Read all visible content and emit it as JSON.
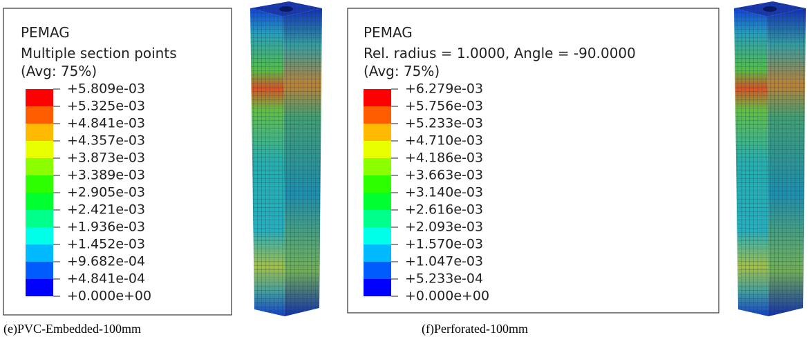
{
  "panels": [
    {
      "legend": {
        "title": "PEMAG",
        "subtitle": "Multiple section points",
        "average": "(Avg: 75%)",
        "labels": [
          "+5.809e-03",
          "+5.325e-03",
          "+4.841e-03",
          "+4.357e-03",
          "+3.873e-03",
          "+3.389e-03",
          "+2.905e-03",
          "+2.421e-03",
          "+1.936e-03",
          "+1.452e-03",
          "+9.682e-04",
          "+4.841e-04",
          "+0.000e+00"
        ]
      },
      "caption": "(e)PVC-Embedded-100mm"
    },
    {
      "legend": {
        "title": "PEMAG",
        "subtitle": "Rel. radius = 1.0000, Angle = -90.0000",
        "average": "(Avg: 75%)",
        "labels": [
          "+6.279e-03",
          "+5.756e-03",
          "+5.233e-03",
          "+4.710e-03",
          "+4.186e-03",
          "+3.663e-03",
          "+3.140e-03",
          "+2.616e-03",
          "+2.093e-03",
          "+1.570e-03",
          "+1.047e-03",
          "+5.233e-04",
          "+0.000e+00"
        ]
      },
      "caption": "(f)Perforated-100mm"
    }
  ],
  "band_colors": [
    "#ff0000",
    "#ff5c00",
    "#ffb900",
    "#e8ff00",
    "#8bff00",
    "#2eff00",
    "#00ff2e",
    "#00ff8b",
    "#00ffe8",
    "#00b9ff",
    "#005cff",
    "#0000ff"
  ]
}
